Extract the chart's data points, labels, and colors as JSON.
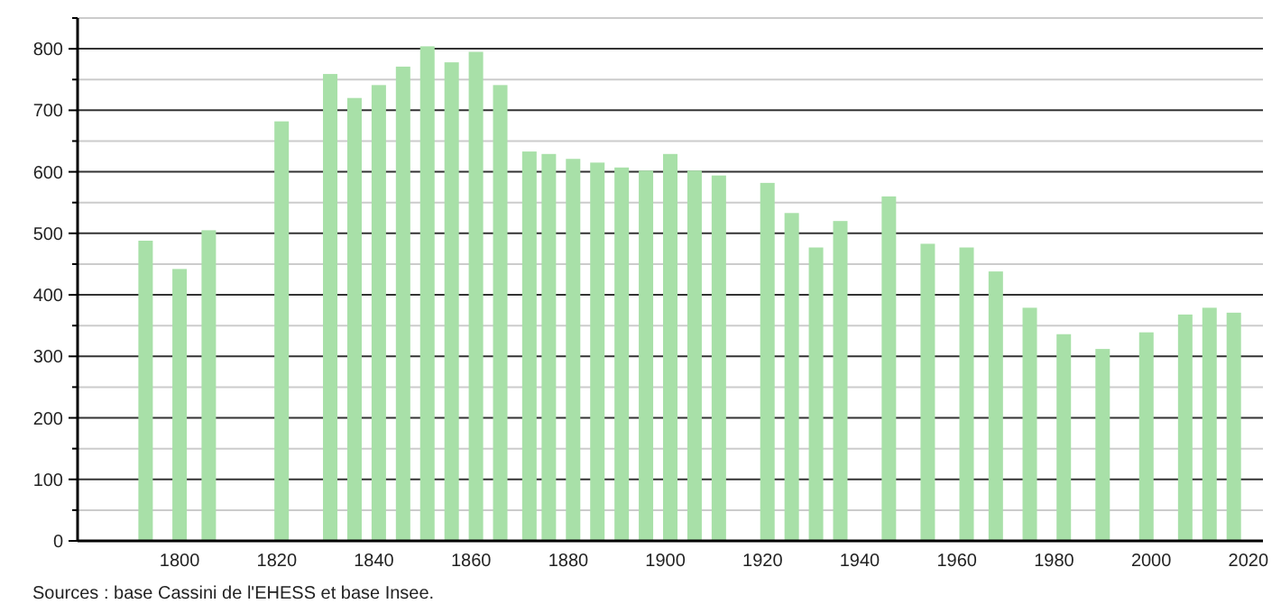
{
  "chart_data": {
    "type": "bar",
    "x": [
      1793,
      1800,
      1806,
      1821,
      1831,
      1836,
      1841,
      1846,
      1851,
      1856,
      1861,
      1866,
      1872,
      1876,
      1881,
      1886,
      1891,
      1896,
      1901,
      1906,
      1911,
      1921,
      1926,
      1931,
      1936,
      1946,
      1954,
      1962,
      1968,
      1975,
      1982,
      1990,
      1999,
      2007,
      2012,
      2017
    ],
    "values": [
      488,
      442,
      505,
      682,
      759,
      720,
      741,
      771,
      804,
      778,
      795,
      741,
      633,
      629,
      621,
      615,
      607,
      602,
      629,
      602,
      594,
      582,
      533,
      477,
      520,
      560,
      483,
      477,
      438,
      379,
      336,
      312,
      339,
      368,
      379,
      371
    ],
    "color": "#a8e0a8",
    "xlim": [
      1779,
      2023
    ],
    "xticks": [
      1800,
      1820,
      1840,
      1860,
      1880,
      1900,
      1920,
      1940,
      1960,
      1980,
      2000,
      2020
    ],
    "ylim": [
      0,
      850
    ],
    "yticks": [
      0,
      {
        "value": 50,
        "label": null
      },
      100,
      {
        "value": 150,
        "label": null
      },
      200,
      {
        "value": 250,
        "label": null
      },
      300,
      {
        "value": 350,
        "label": null
      },
      400,
      {
        "value": 450,
        "label": null
      },
      500,
      {
        "value": 550,
        "label": null
      },
      600,
      {
        "value": 650,
        "label": null
      },
      700,
      {
        "value": 750,
        "label": null
      },
      800,
      {
        "value": 850,
        "label": null
      }
    ],
    "grid": "y",
    "annotations": [
      "Sources : base Cassini de l'EHESS et base Insee."
    ]
  }
}
